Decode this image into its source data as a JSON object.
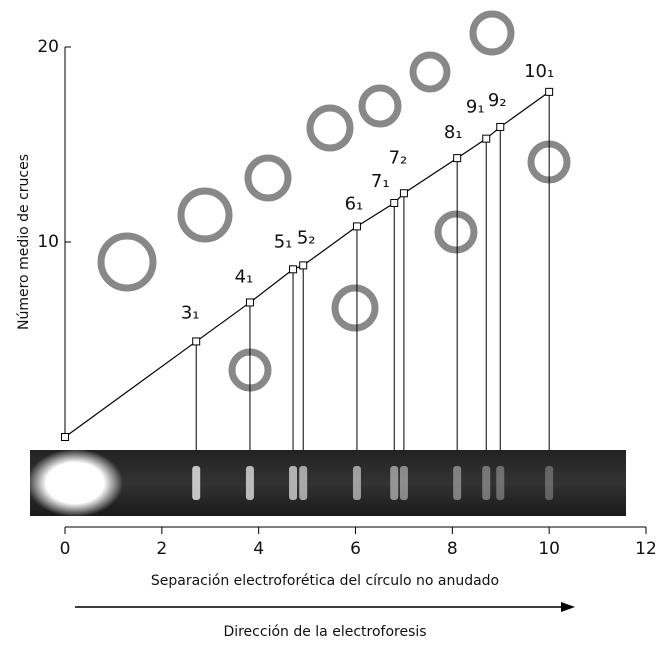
{
  "chart_data": {
    "type": "line",
    "y_label": "Número medio de cruces",
    "x_label": "Separación electroforética del círculo no anudado",
    "direction_label": "Dirección de la electroforesis",
    "x": [
      0,
      2.71,
      3.82,
      4.71,
      4.92,
      6.03,
      6.8,
      7.0,
      8.1,
      8.7,
      8.99,
      10.0
    ],
    "values": [
      0,
      4.9,
      6.9,
      8.6,
      8.8,
      10.8,
      12.0,
      12.5,
      14.3,
      15.3,
      15.9,
      17.7
    ],
    "point_labels": [
      null,
      "3₁",
      "4₁",
      "5₁",
      "5₂",
      "6₁",
      "7₁",
      "7₂",
      "8₁",
      "9₁",
      "9₂",
      "10₁"
    ],
    "color": "#000000",
    "xlim": [
      0,
      12
    ],
    "xticks": [
      0,
      2,
      4,
      6,
      8,
      10,
      12
    ],
    "ylim": [
      0,
      20
    ],
    "yticks": [
      10,
      20
    ]
  }
}
